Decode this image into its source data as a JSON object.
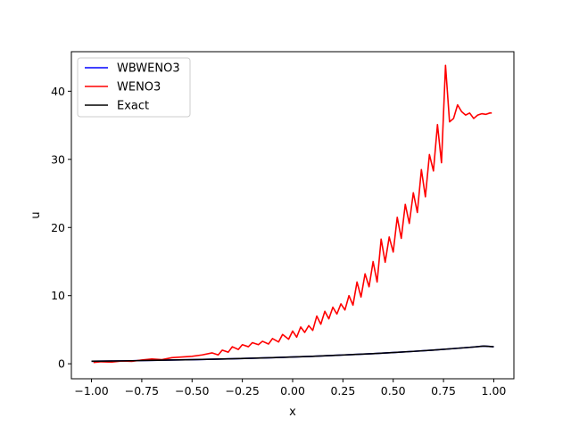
{
  "chart_data": {
    "type": "line",
    "title": "",
    "xlabel": "x",
    "ylabel": "u",
    "xlim": [
      -1.1,
      1.1
    ],
    "ylim": [
      -2.2,
      45.8
    ],
    "grid": false,
    "legend_position": "top-left",
    "x_ticks": [
      -1.0,
      -0.75,
      -0.5,
      -0.25,
      0.0,
      0.25,
      0.5,
      0.75,
      1.0
    ],
    "x_tick_labels": [
      "−1.00",
      "−0.75",
      "−0.50",
      "−0.25",
      "0.00",
      "0.25",
      "0.50",
      "0.75",
      "1.00"
    ],
    "y_ticks": [
      0,
      10,
      20,
      30,
      40
    ],
    "y_tick_labels": [
      "0",
      "10",
      "20",
      "30",
      "40"
    ],
    "series": [
      {
        "name": "WBWENO3",
        "color": "#0000ff",
        "x": [
          -1.0,
          -0.9,
          -0.8,
          -0.7,
          -0.6,
          -0.5,
          -0.4,
          -0.3,
          -0.2,
          -0.1,
          0.0,
          0.1,
          0.2,
          0.3,
          0.4,
          0.5,
          0.6,
          0.7,
          0.8,
          0.9,
          0.95,
          1.0
        ],
        "values": [
          0.37,
          0.41,
          0.45,
          0.5,
          0.55,
          0.61,
          0.67,
          0.74,
          0.82,
          0.9,
          1.0,
          1.1,
          1.22,
          1.35,
          1.49,
          1.65,
          1.82,
          2.01,
          2.23,
          2.46,
          2.6,
          2.5
        ]
      },
      {
        "name": "WENO3",
        "color": "#ff0000",
        "x": [
          -0.99,
          -0.95,
          -0.9,
          -0.85,
          -0.8,
          -0.75,
          -0.7,
          -0.65,
          -0.6,
          -0.55,
          -0.5,
          -0.45,
          -0.4,
          -0.37,
          -0.35,
          -0.32,
          -0.3,
          -0.27,
          -0.25,
          -0.22,
          -0.2,
          -0.17,
          -0.15,
          -0.12,
          -0.1,
          -0.07,
          -0.05,
          -0.02,
          0.0,
          0.02,
          0.04,
          0.06,
          0.08,
          0.1,
          0.12,
          0.14,
          0.16,
          0.18,
          0.2,
          0.22,
          0.24,
          0.26,
          0.28,
          0.3,
          0.32,
          0.34,
          0.36,
          0.38,
          0.4,
          0.42,
          0.44,
          0.46,
          0.48,
          0.5,
          0.52,
          0.54,
          0.56,
          0.58,
          0.6,
          0.62,
          0.64,
          0.66,
          0.68,
          0.7,
          0.72,
          0.74,
          0.76,
          0.78,
          0.8,
          0.82,
          0.84,
          0.86,
          0.88,
          0.9,
          0.92,
          0.94,
          0.96,
          0.98,
          0.99
        ],
        "values": [
          0.2,
          0.3,
          0.25,
          0.4,
          0.35,
          0.55,
          0.7,
          0.6,
          0.9,
          1.0,
          1.1,
          1.3,
          1.6,
          1.3,
          2.0,
          1.7,
          2.5,
          2.1,
          2.8,
          2.5,
          3.1,
          2.8,
          3.3,
          2.9,
          3.7,
          3.2,
          4.3,
          3.6,
          4.8,
          3.9,
          5.4,
          4.6,
          5.6,
          4.9,
          7.0,
          5.8,
          7.7,
          6.6,
          8.3,
          7.3,
          8.8,
          7.9,
          10.0,
          8.6,
          12.0,
          9.8,
          13.2,
          11.3,
          15.0,
          12.0,
          18.3,
          14.9,
          18.6,
          16.4,
          21.5,
          18.4,
          23.4,
          20.6,
          25.1,
          22.2,
          28.5,
          24.5,
          30.7,
          28.3,
          35.1,
          29.5,
          43.8,
          35.5,
          36.0,
          38.0,
          37.0,
          36.5,
          36.8,
          36.0,
          36.5,
          36.7,
          36.6,
          36.8,
          36.8
        ]
      },
      {
        "name": "Exact",
        "color": "#000000",
        "x": [
          -1.0,
          -0.9,
          -0.8,
          -0.7,
          -0.6,
          -0.5,
          -0.4,
          -0.3,
          -0.2,
          -0.1,
          0.0,
          0.1,
          0.2,
          0.3,
          0.4,
          0.5,
          0.6,
          0.7,
          0.8,
          0.9,
          0.95,
          1.0
        ],
        "values": [
          0.37,
          0.41,
          0.45,
          0.5,
          0.55,
          0.61,
          0.67,
          0.74,
          0.82,
          0.9,
          1.0,
          1.1,
          1.22,
          1.35,
          1.49,
          1.65,
          1.82,
          2.01,
          2.23,
          2.46,
          2.6,
          2.5
        ]
      }
    ]
  }
}
